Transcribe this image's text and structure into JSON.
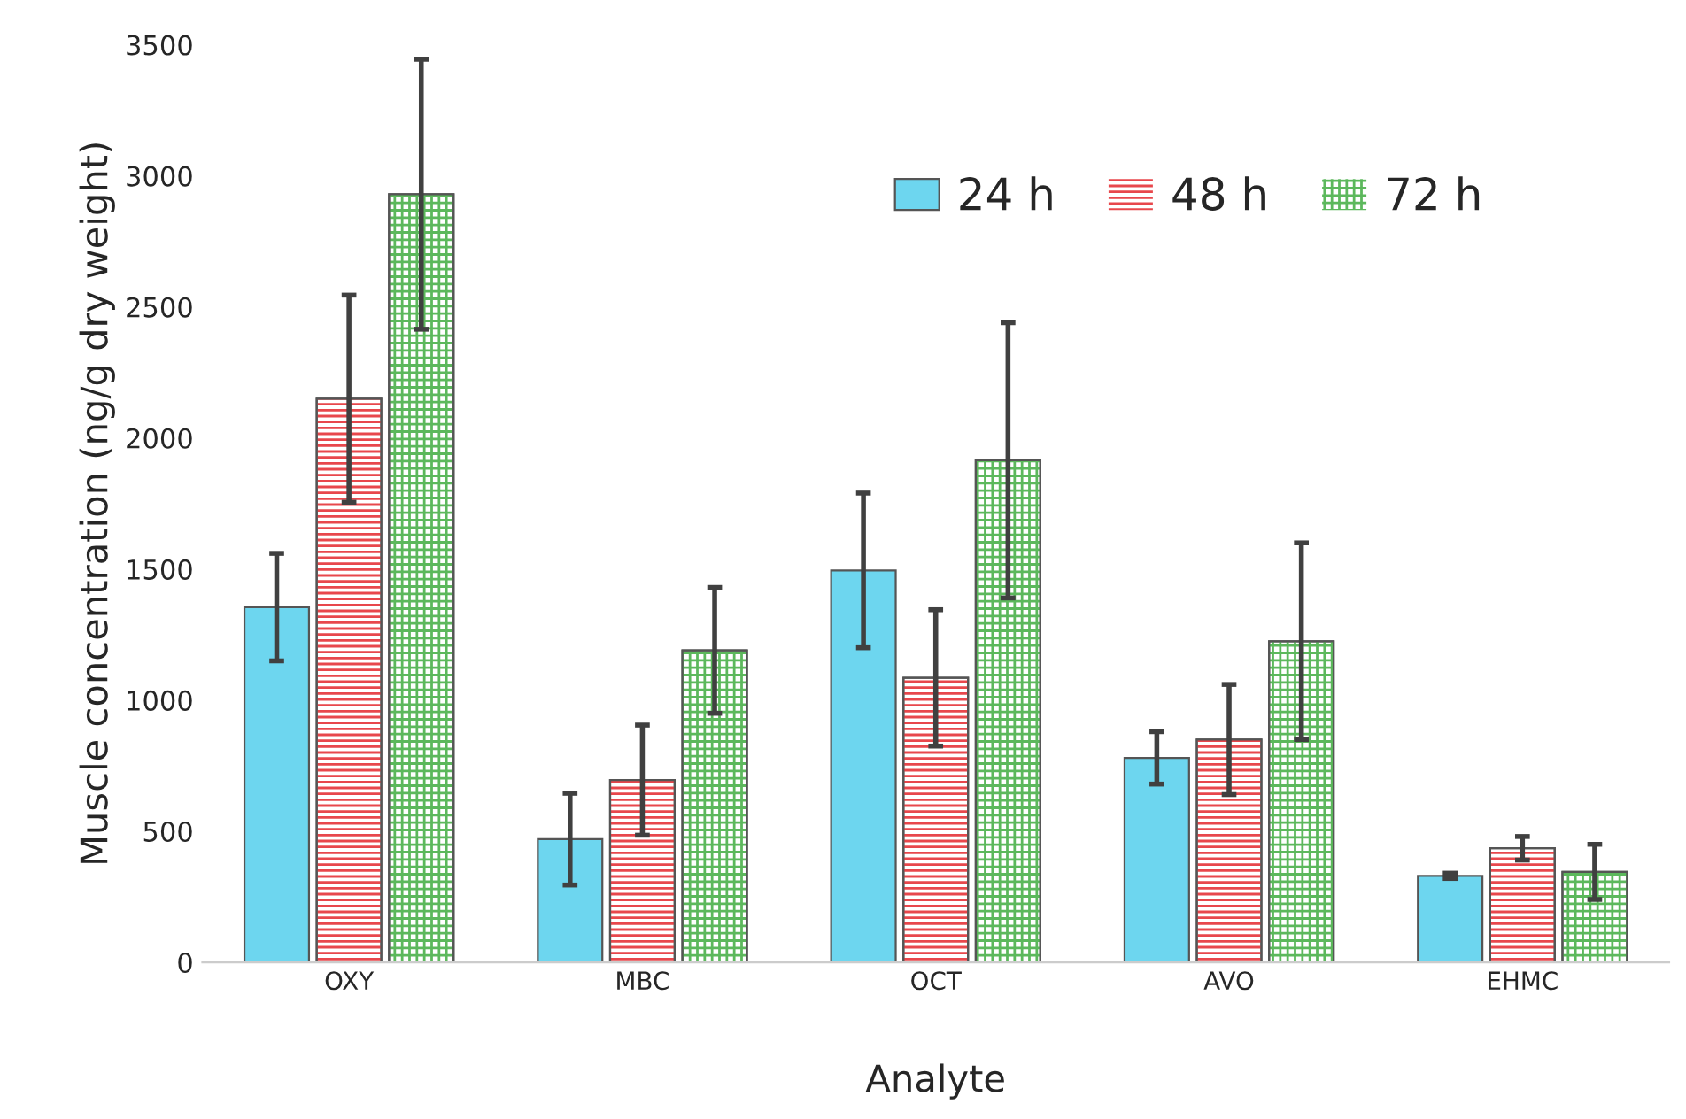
{
  "chart_data": {
    "type": "bar",
    "xlabel": "Analyte",
    "ylabel": "Muscle concentration (ng/g dry weight)",
    "categories": [
      "OXY",
      "MBC",
      "OCT",
      "AVO",
      "EHMC"
    ],
    "series": [
      {
        "name": "24 h",
        "color": "#6dd6ef",
        "values": [
          1355,
          470,
          1495,
          780,
          330
        ],
        "errors": [
          205,
          175,
          295,
          100,
          10
        ]
      },
      {
        "name": "48 h",
        "color": "#e8474c",
        "values": [
          2150,
          695,
          1085,
          850,
          435
        ],
        "errors": [
          395,
          210,
          260,
          210,
          45
        ]
      },
      {
        "name": "72 h",
        "color": "#5cb85c",
        "values": [
          2930,
          1190,
          1915,
          1225,
          345
        ],
        "errors": [
          515,
          240,
          525,
          375,
          105
        ]
      }
    ],
    "ylim": [
      0,
      3500
    ],
    "yticks": [
      0,
      500,
      1000,
      1500,
      2000,
      2500,
      3000,
      3500
    ],
    "grid": false,
    "legend": "top right"
  }
}
